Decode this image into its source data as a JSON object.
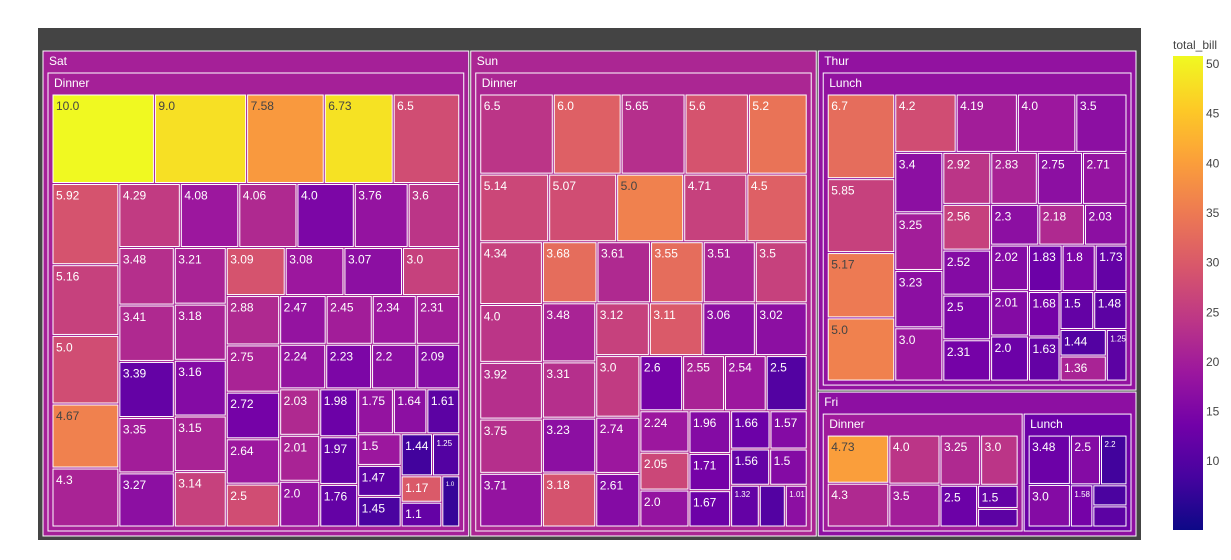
{
  "chart_data": {
    "type": "treemap",
    "title": "",
    "value_note": "tip",
    "root_color": "#444444",
    "colorbar": {
      "title": "total_bill",
      "ticks": [
        10,
        15,
        20,
        25,
        30,
        35,
        40,
        45,
        50
      ],
      "range": [
        3.07,
        50.81
      ],
      "colorscale": [
        "#0d0887",
        "#46039f",
        "#7201a8",
        "#9c179e",
        "#bd3786",
        "#d8576b",
        "#ed7953",
        "#fb9f3a",
        "#fdca26",
        "#f0f921"
      ]
    },
    "days": [
      {
        "name": "Sat",
        "color_value": 20.4,
        "groups": [
          {
            "name": "Dinner",
            "color_value": 20.4,
            "tips": [
              {
                "label": "3.0",
                "total_bill": 26.0
              },
              {
                "label": "2.0",
                "total_bill": 18.0
              },
              {
                "label": "2.5",
                "total_bill": 28.0
              },
              {
                "label": "5.0",
                "total_bill": 28.0
              },
              {
                "label": "4.08",
                "total_bill": 19.0
              },
              {
                "label": "1.5",
                "total_bill": 19.0
              },
              {
                "label": "3.76",
                "total_bill": 18.0
              },
              {
                "label": "4.67",
                "total_bill": 36.0
              },
              {
                "label": "1.17",
                "total_bill": 30.0
              },
              {
                "label": "10.0",
                "total_bill": 50.81
              },
              {
                "label": "9.0",
                "total_bill": 48.0
              },
              {
                "label": "6.73",
                "total_bill": 48.2
              },
              {
                "label": "7.58",
                "total_bill": 39.4
              },
              {
                "label": "3.09",
                "total_bill": 29.0
              },
              {
                "label": "5.92",
                "total_bill": 29.0
              },
              {
                "label": "2.23",
                "total_bill": 15.0
              },
              {
                "label": "6.5",
                "total_bill": 28.0
              },
              {
                "label": "3.14",
                "total_bill": 26.0
              },
              {
                "label": "3.41",
                "total_bill": 22.0
              },
              {
                "label": "5.16",
                "total_bill": 26.0
              },
              {
                "label": "4.29",
                "total_bill": 25.0
              },
              {
                "label": "2.03",
                "total_bill": 22.0
              },
              {
                "label": "3.6",
                "total_bill": 24.0
              },
              {
                "label": "1.0",
                "total_bill": 7.0
              },
              {
                "label": "3.35",
                "total_bill": 20.0
              },
              {
                "label": "1.25",
                "total_bill": 10.0
              },
              {
                "label": "4.06",
                "total_bill": 22.0
              },
              {
                "label": "2.75",
                "total_bill": 21.0
              },
              {
                "label": "3.21",
                "total_bill": 21.0
              },
              {
                "label": "3.48",
                "total_bill": 23.0
              },
              {
                "label": "2.01",
                "total_bill": 21.0
              },
              {
                "label": "3.08",
                "total_bill": 19.0
              },
              {
                "label": "1.75",
                "total_bill": 18.0
              },
              {
                "label": "2.34",
                "total_bill": 19.0
              },
              {
                "label": "3.27",
                "total_bill": 17.0
              },
              {
                "label": "2.88",
                "total_bill": 22.0
              },
              {
                "label": "3.15",
                "total_bill": 21.0
              },
              {
                "label": "2.64",
                "total_bill": 19.0
              },
              {
                "label": "2.24",
                "total_bill": 18.0
              },
              {
                "label": "2.2",
                "total_bill": 17.0
              },
              {
                "label": "4.0",
                "total_bill": 15.0
              },
              {
                "label": "2.72",
                "total_bill": 14.0
              },
              {
                "label": "4.3",
                "total_bill": 21.0
              },
              {
                "label": "3.18",
                "total_bill": 21.0
              },
              {
                "label": "3.07",
                "total_bill": 17.0
              },
              {
                "label": "3.16",
                "total_bill": 16.0
              },
              {
                "label": "1.1",
                "total_bill": 12.0
              },
              {
                "label": "1.76",
                "total_bill": 12.0
              },
              {
                "label": "1.98",
                "total_bill": 13.0
              },
              {
                "label": "1.64",
                "total_bill": 17.0
              },
              {
                "label": "1.97",
                "total_bill": 12.0
              },
              {
                "label": "1.47",
                "total_bill": 11.0
              },
              {
                "label": "1.61",
                "total_bill": 11.0
              },
              {
                "label": "2.45",
                "total_bill": 20.0
              },
              {
                "label": "2.31",
                "total_bill": 20.0
              },
              {
                "label": "2.47",
                "total_bill": 18.0
              },
              {
                "label": "2.09",
                "total_bill": 16.0
              },
              {
                "label": "3.39",
                "total_bill": 12.0
              },
              {
                "label": "1.45",
                "total_bill": 9.0
              },
              {
                "label": "1.44",
                "total_bill": 8.0
              }
            ]
          }
        ]
      },
      {
        "name": "Sun",
        "color_value": 21.4,
        "groups": [
          {
            "name": "Dinner",
            "color_value": 21.4,
            "tips": [
              {
                "label": "2.0",
                "total_bill": 18.0
              },
              {
                "label": "3.5",
                "total_bill": 26.0
              },
              {
                "label": "5.0",
                "total_bill": 36.0
              },
              {
                "label": "4.0",
                "total_bill": 24.0
              },
              {
                "label": "3.0",
                "total_bill": 25.0
              },
              {
                "label": "2.5",
                "total_bill": 10.0
              },
              {
                "label": "5.2",
                "total_bill": 34.0
              },
              {
                "label": "3.68",
                "total_bill": 33.0
              },
              {
                "label": "3.55",
                "total_bill": 33.0
              },
              {
                "label": "3.11",
                "total_bill": 30.0
              },
              {
                "label": "6.0",
                "total_bill": 31.0
              },
              {
                "label": "3.18",
                "total_bill": 29.0
              },
              {
                "label": "2.05",
                "total_bill": 27.0
              },
              {
                "label": "3.12",
                "total_bill": 26.0
              },
              {
                "label": "4.34",
                "total_bill": 26.0
              },
              {
                "label": "4.71",
                "total_bill": 26.0
              },
              {
                "label": "4.5",
                "total_bill": 31.0
              },
              {
                "label": "3.75",
                "total_bill": 23.0
              },
              {
                "label": "3.31",
                "total_bill": 23.0
              },
              {
                "label": "5.65",
                "total_bill": 23.0
              },
              {
                "label": "6.5",
                "total_bill": 24.0
              },
              {
                "label": "3.92",
                "total_bill": 23.0
              },
              {
                "label": "5.6",
                "total_bill": 29.0
              },
              {
                "label": "3.61",
                "total_bill": 22.0
              },
              {
                "label": "2.24",
                "total_bill": 19.0
              },
              {
                "label": "1.01",
                "total_bill": 17.0
              },
              {
                "label": "3.71",
                "total_bill": 18.0
              },
              {
                "label": "1.5",
                "total_bill": 16.0
              },
              {
                "label": "5.07",
                "total_bill": 28.0
              },
              {
                "label": "3.51",
                "total_bill": 21.0
              },
              {
                "label": "1.57",
                "total_bill": 16.0
              },
              {
                "label": "3.23",
                "total_bill": 17.0
              },
              {
                "label": "3.06",
                "total_bill": 17.0
              },
              {
                "label": "3.48",
                "total_bill": 21.0
              },
              {
                "label": "2.54",
                "total_bill": 19.0
              },
              {
                "label": "1.96",
                "total_bill": 16.0
              },
              {
                "label": "2.61",
                "total_bill": 16.0
              },
              {
                "label": "2.6",
                "total_bill": 14.0
              },
              {
                "label": "1.71",
                "total_bill": 14.0
              },
              {
                "label": "5.14",
                "total_bill": 27.0
              },
              {
                "label": "2.55",
                "total_bill": 21.0
              },
              {
                "label": "2.74",
                "total_bill": 19.0
              },
              {
                "label": "3.02",
                "total_bill": 17.0
              },
              {
                "label": "1.66",
                "total_bill": 13.0
              },
              {
                "label": "1.56",
                "total_bill": 12.0
              },
              {
                "label": "1.67",
                "total_bill": 13.0
              },
              {
                "label": "1.32",
                "total_bill": 12.0
              },
              {
                "label": "",
                "total_bill": 10.0
              }
            ]
          }
        ]
      },
      {
        "name": "Thur",
        "color_value": 17.7,
        "groups": [
          {
            "name": "Lunch",
            "color_value": 17.7,
            "tips": [
              {
                "label": "2.0",
                "total_bill": 13.0
              },
              {
                "label": "5.0",
                "total_bill": 36.0
              },
              {
                "label": "4.0",
                "total_bill": 19.0
              },
              {
                "label": "3.0",
                "total_bill": 19.0
              },
              {
                "label": "1.5",
                "total_bill": 12.0
              },
              {
                "label": "6.7",
                "total_bill": 33.0
              },
              {
                "label": "2.5",
                "total_bill": 15.0
              },
              {
                "label": "4.2",
                "total_bill": 28.0
              },
              {
                "label": "5.17",
                "total_bill": 35.0
              },
              {
                "label": "2.56",
                "total_bill": 26.0
              },
              {
                "label": "5.85",
                "total_bill": 26.0
              },
              {
                "label": "2.92",
                "total_bill": 24.0
              },
              {
                "label": "2.18",
                "total_bill": 22.0
              },
              {
                "label": "2.83",
                "total_bill": 21.0
              },
              {
                "label": "4.19",
                "total_bill": 20.0
              },
              {
                "label": "2.71",
                "total_bill": 18.0
              },
              {
                "label": "3.4",
                "total_bill": 17.0
              },
              {
                "label": "3.23",
                "total_bill": 17.0
              },
              {
                "label": "2.3",
                "total_bill": 17.0
              },
              {
                "label": "1.36",
                "total_bill": 21.0
              },
              {
                "label": "2.03",
                "total_bill": 17.0
              },
              {
                "label": "2.75",
                "total_bill": 17.0
              },
              {
                "label": "2.01",
                "total_bill": 16.0
              },
              {
                "label": "2.52",
                "total_bill": 16.0
              },
              {
                "label": "3.25",
                "total_bill": 20.0
              },
              {
                "label": "2.02",
                "total_bill": 16.0
              },
              {
                "label": "1.8",
                "total_bill": 15.0
              },
              {
                "label": "2.31",
                "total_bill": 14.0
              },
              {
                "label": "1.83",
                "total_bill": 13.0
              },
              {
                "label": "3.5",
                "total_bill": 17.0
              },
              {
                "label": "1.68",
                "total_bill": 14.0
              },
              {
                "label": "1.63",
                "total_bill": 12.0
              },
              {
                "label": "1.73",
                "total_bill": 12.0
              },
              {
                "label": "1.25",
                "total_bill": 11.0
              },
              {
                "label": "1.48",
                "total_bill": 11.0
              },
              {
                "label": "1.44",
                "total_bill": 10.0
              }
            ]
          }
        ]
      },
      {
        "name": "Fri",
        "color_value": 17.1,
        "groups": [
          {
            "name": "Dinner",
            "color_value": 19.7,
            "tips": [
              {
                "label": "3.0",
                "total_bill": 24.0
              },
              {
                "label": "4.73",
                "total_bill": 40.0
              },
              {
                "label": "4.0",
                "total_bill": 24.0
              },
              {
                "label": "1.5",
                "total_bill": 12.0
              },
              {
                "label": "3.25",
                "total_bill": 22.0
              },
              {
                "label": "3.5",
                "total_bill": 20.0
              },
              {
                "label": "4.3",
                "total_bill": 22.0
              },
              {
                "label": "2.5",
                "total_bill": 13.0
              },
              {
                "label": "",
                "total_bill": 11.0
              }
            ]
          },
          {
            "name": "Lunch",
            "color_value": 12.8,
            "tips": [
              {
                "label": "2.5",
                "total_bill": 16.0
              },
              {
                "label": "1.58",
                "total_bill": 14.0
              },
              {
                "label": "3.48",
                "total_bill": 13.0
              },
              {
                "label": "3.0",
                "total_bill": 16.0
              },
              {
                "label": "2.2",
                "total_bill": 8.0
              },
              {
                "label": "",
                "total_bill": 9.0
              },
              {
                "label": "",
                "total_bill": 11.0
              }
            ]
          }
        ]
      }
    ]
  }
}
